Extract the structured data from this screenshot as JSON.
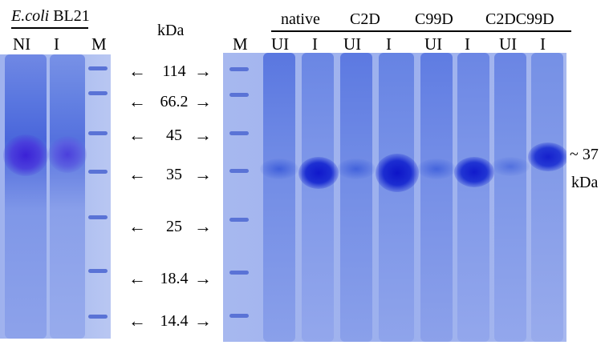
{
  "left_panel": {
    "strain_italic": "E.coli",
    "strain_rest": "BL21",
    "lanes": [
      "NI",
      "I",
      "M"
    ]
  },
  "kda_label": "kDa",
  "markers": [
    "114",
    "66.2",
    "45",
    "35",
    "25",
    "18.4",
    "14.4"
  ],
  "right_panel": {
    "groups": [
      "native",
      "C2D",
      "C99D",
      "C2DC99D"
    ],
    "lanes": [
      "M",
      "UI",
      "I",
      "UI",
      "I",
      "UI",
      "I",
      "UI",
      "I"
    ],
    "annotation_value": "~ 37",
    "annotation_unit": "kDa"
  },
  "colors": {
    "gel_background": "#a7b8ef",
    "band_dark": "#1a2fd0",
    "lane_blue": "#6b86e6"
  },
  "arrow_left": "←",
  "arrow_right": "→"
}
